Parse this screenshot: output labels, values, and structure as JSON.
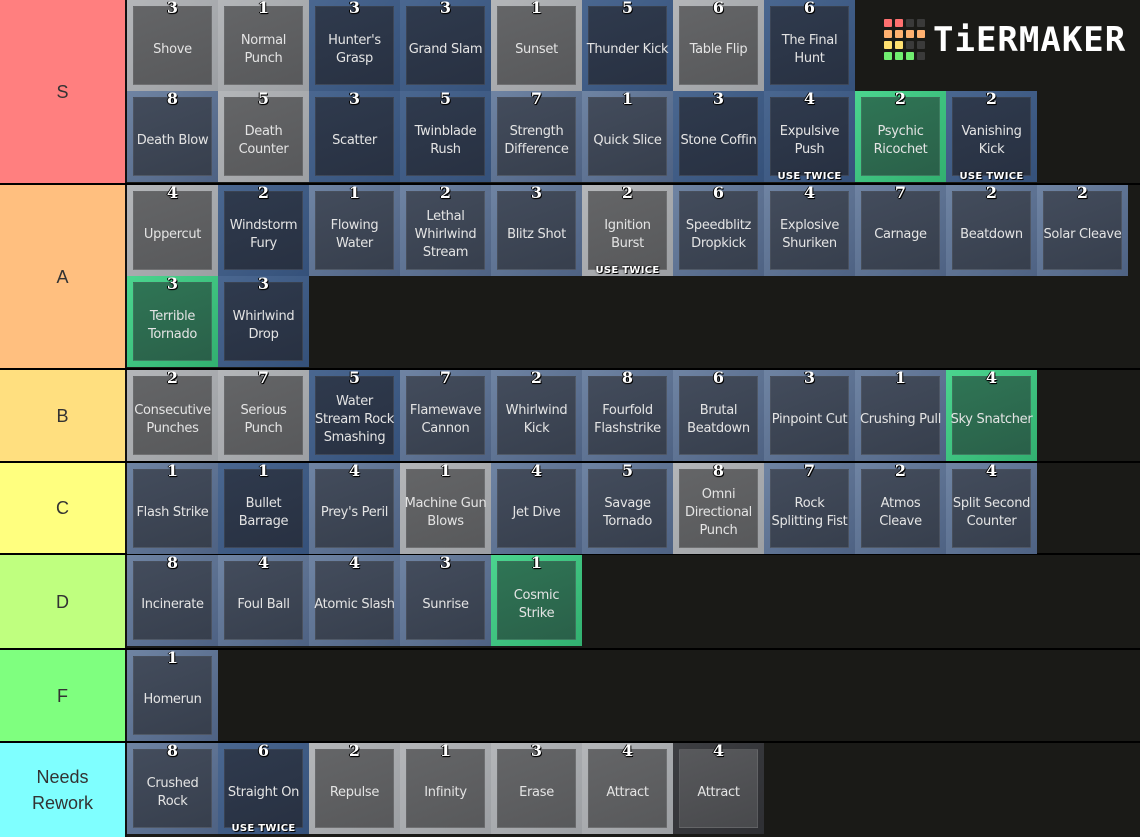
{
  "logo": {
    "text": "TiERMAKER",
    "grid_colors": [
      "#ff7070",
      "#ff7070",
      "#3a3a3a",
      "#3a3a3a",
      "#ffb070",
      "#ffb070",
      "#ffb070",
      "#ffb070",
      "#ffe070",
      "#ffe070",
      "#3a3a3a",
      "#3a3a3a",
      "#70ee70",
      "#70ee70",
      "#70ee70",
      "#3a3a3a"
    ]
  },
  "tiers": [
    {
      "label": "S",
      "color": "#ff7f7f",
      "height": 183,
      "items": [
        {
          "name": "Shove",
          "num": "3",
          "style": "gray"
        },
        {
          "name": "Normal Punch",
          "num": "1",
          "style": "gray"
        },
        {
          "name": "Hunter's Grasp",
          "num": "3",
          "style": "blue"
        },
        {
          "name": "Grand Slam",
          "num": "3",
          "style": "blue"
        },
        {
          "name": "Sunset",
          "num": "1",
          "style": "gray"
        },
        {
          "name": "Thunder Kick",
          "num": "5",
          "style": "blue"
        },
        {
          "name": "Table Flip",
          "num": "6",
          "style": "gray"
        },
        {
          "name": "The Final Hunt",
          "num": "6",
          "style": "blue"
        },
        {
          "name": "__spacer__",
          "num": "",
          "style": "spacer"
        },
        {
          "name": "__spacer__",
          "num": "",
          "style": "spacer"
        },
        {
          "name": "__spacer__",
          "num": "",
          "style": "spacer"
        },
        {
          "name": "Death Blow",
          "num": "8",
          "style": "steel"
        },
        {
          "name": "Death Counter",
          "num": "5",
          "style": "gray"
        },
        {
          "name": "Scatter",
          "num": "3",
          "style": "blue"
        },
        {
          "name": "Twinblade Rush",
          "num": "5",
          "style": "blue"
        },
        {
          "name": "Strength Difference",
          "num": "7",
          "style": "steel"
        },
        {
          "name": "Quick Slice",
          "num": "1",
          "style": "steel"
        },
        {
          "name": "Stone Coffin",
          "num": "3",
          "style": "blue"
        },
        {
          "name": "Expulsive Push",
          "num": "4",
          "style": "blue",
          "badge": "USE TWICE"
        },
        {
          "name": "Psychic Ricochet",
          "num": "2",
          "style": "green"
        },
        {
          "name": "Vanishing Kick",
          "num": "2",
          "style": "blue",
          "badge": "USE TWICE"
        }
      ]
    },
    {
      "label": "A",
      "color": "#ffbf7f",
      "height": 183,
      "items": [
        {
          "name": "Uppercut",
          "num": "4",
          "style": "gray"
        },
        {
          "name": "Windstorm Fury",
          "num": "2",
          "style": "blue"
        },
        {
          "name": "Flowing Water",
          "num": "1",
          "style": "steel"
        },
        {
          "name": "Lethal Whirlwind Stream",
          "num": "2",
          "style": "steel"
        },
        {
          "name": "Blitz Shot",
          "num": "3",
          "style": "steel"
        },
        {
          "name": "Ignition Burst",
          "num": "2",
          "style": "gray",
          "badge": "USE TWICE"
        },
        {
          "name": "Speedblitz Dropkick",
          "num": "6",
          "style": "steel"
        },
        {
          "name": "Explosive Shuriken",
          "num": "4",
          "style": "steel"
        },
        {
          "name": "Carnage",
          "num": "7",
          "style": "steel"
        },
        {
          "name": "Beatdown",
          "num": "2",
          "style": "steel"
        },
        {
          "name": "Solar Cleave",
          "num": "2",
          "style": "steel"
        },
        {
          "name": "Terrible Tornado",
          "num": "3",
          "style": "green"
        },
        {
          "name": "Whirlwind Drop",
          "num": "3",
          "style": "blue"
        }
      ]
    },
    {
      "label": "B",
      "color": "#ffdf7f",
      "height": 91,
      "items": [
        {
          "name": "Consecutive Punches",
          "num": "2",
          "style": "gray"
        },
        {
          "name": "Serious Punch",
          "num": "7",
          "style": "gray"
        },
        {
          "name": "Water Stream Rock Smashing",
          "num": "5",
          "style": "blue"
        },
        {
          "name": "Flamewave Cannon",
          "num": "7",
          "style": "steel"
        },
        {
          "name": "Whirlwind Kick",
          "num": "2",
          "style": "steel"
        },
        {
          "name": "Fourfold Flashstrike",
          "num": "8",
          "style": "steel"
        },
        {
          "name": "Brutal Beatdown",
          "num": "6",
          "style": "steel"
        },
        {
          "name": "Pinpoint Cut",
          "num": "3",
          "style": "steel"
        },
        {
          "name": "Crushing Pull",
          "num": "1",
          "style": "steel"
        },
        {
          "name": "Sky Snatcher",
          "num": "4",
          "style": "green"
        }
      ]
    },
    {
      "label": "C",
      "color": "#ffff7f",
      "height": 90,
      "items": [
        {
          "name": "Flash Strike",
          "num": "1",
          "style": "steel"
        },
        {
          "name": "Bullet Barrage",
          "num": "1",
          "style": "blue"
        },
        {
          "name": "Prey's Peril",
          "num": "4",
          "style": "steel"
        },
        {
          "name": "Machine Gun Blows",
          "num": "1",
          "style": "gray"
        },
        {
          "name": "Jet Dive",
          "num": "4",
          "style": "steel"
        },
        {
          "name": "Savage Tornado",
          "num": "5",
          "style": "steel"
        },
        {
          "name": "Omni Directional Punch",
          "num": "8",
          "style": "gray"
        },
        {
          "name": "Rock Splitting Fist",
          "num": "7",
          "style": "steel"
        },
        {
          "name": "Atmos Cleave",
          "num": "2",
          "style": "steel"
        },
        {
          "name": "Split Second Counter",
          "num": "4",
          "style": "steel"
        }
      ]
    },
    {
      "label": "D",
      "color": "#bfff7f",
      "height": 93,
      "items": [
        {
          "name": "Incinerate",
          "num": "8",
          "style": "steel"
        },
        {
          "name": "Foul Ball",
          "num": "4",
          "style": "steel"
        },
        {
          "name": "Atomic Slash",
          "num": "4",
          "style": "steel"
        },
        {
          "name": "Sunrise",
          "num": "3",
          "style": "steel"
        },
        {
          "name": "Cosmic Strike",
          "num": "1",
          "style": "green"
        }
      ]
    },
    {
      "label": "F",
      "color": "#7fff7f",
      "height": 91,
      "items": [
        {
          "name": "Homerun",
          "num": "1",
          "style": "steel"
        }
      ]
    },
    {
      "label": "Needs\nRework",
      "color": "#7fffff",
      "height": 94,
      "items": [
        {
          "name": "Crushed Rock",
          "num": "8",
          "style": "steel"
        },
        {
          "name": "Straight On",
          "num": "6",
          "style": "blue",
          "badge": "USE TWICE"
        },
        {
          "name": "Repulse",
          "num": "2",
          "style": "gray"
        },
        {
          "name": "Infinity",
          "num": "1",
          "style": "gray"
        },
        {
          "name": "Erase",
          "num": "3",
          "style": "gray"
        },
        {
          "name": "Attract",
          "num": "4",
          "style": "gray"
        },
        {
          "name": "Attract",
          "num": "4",
          "style": "dark"
        }
      ]
    }
  ]
}
